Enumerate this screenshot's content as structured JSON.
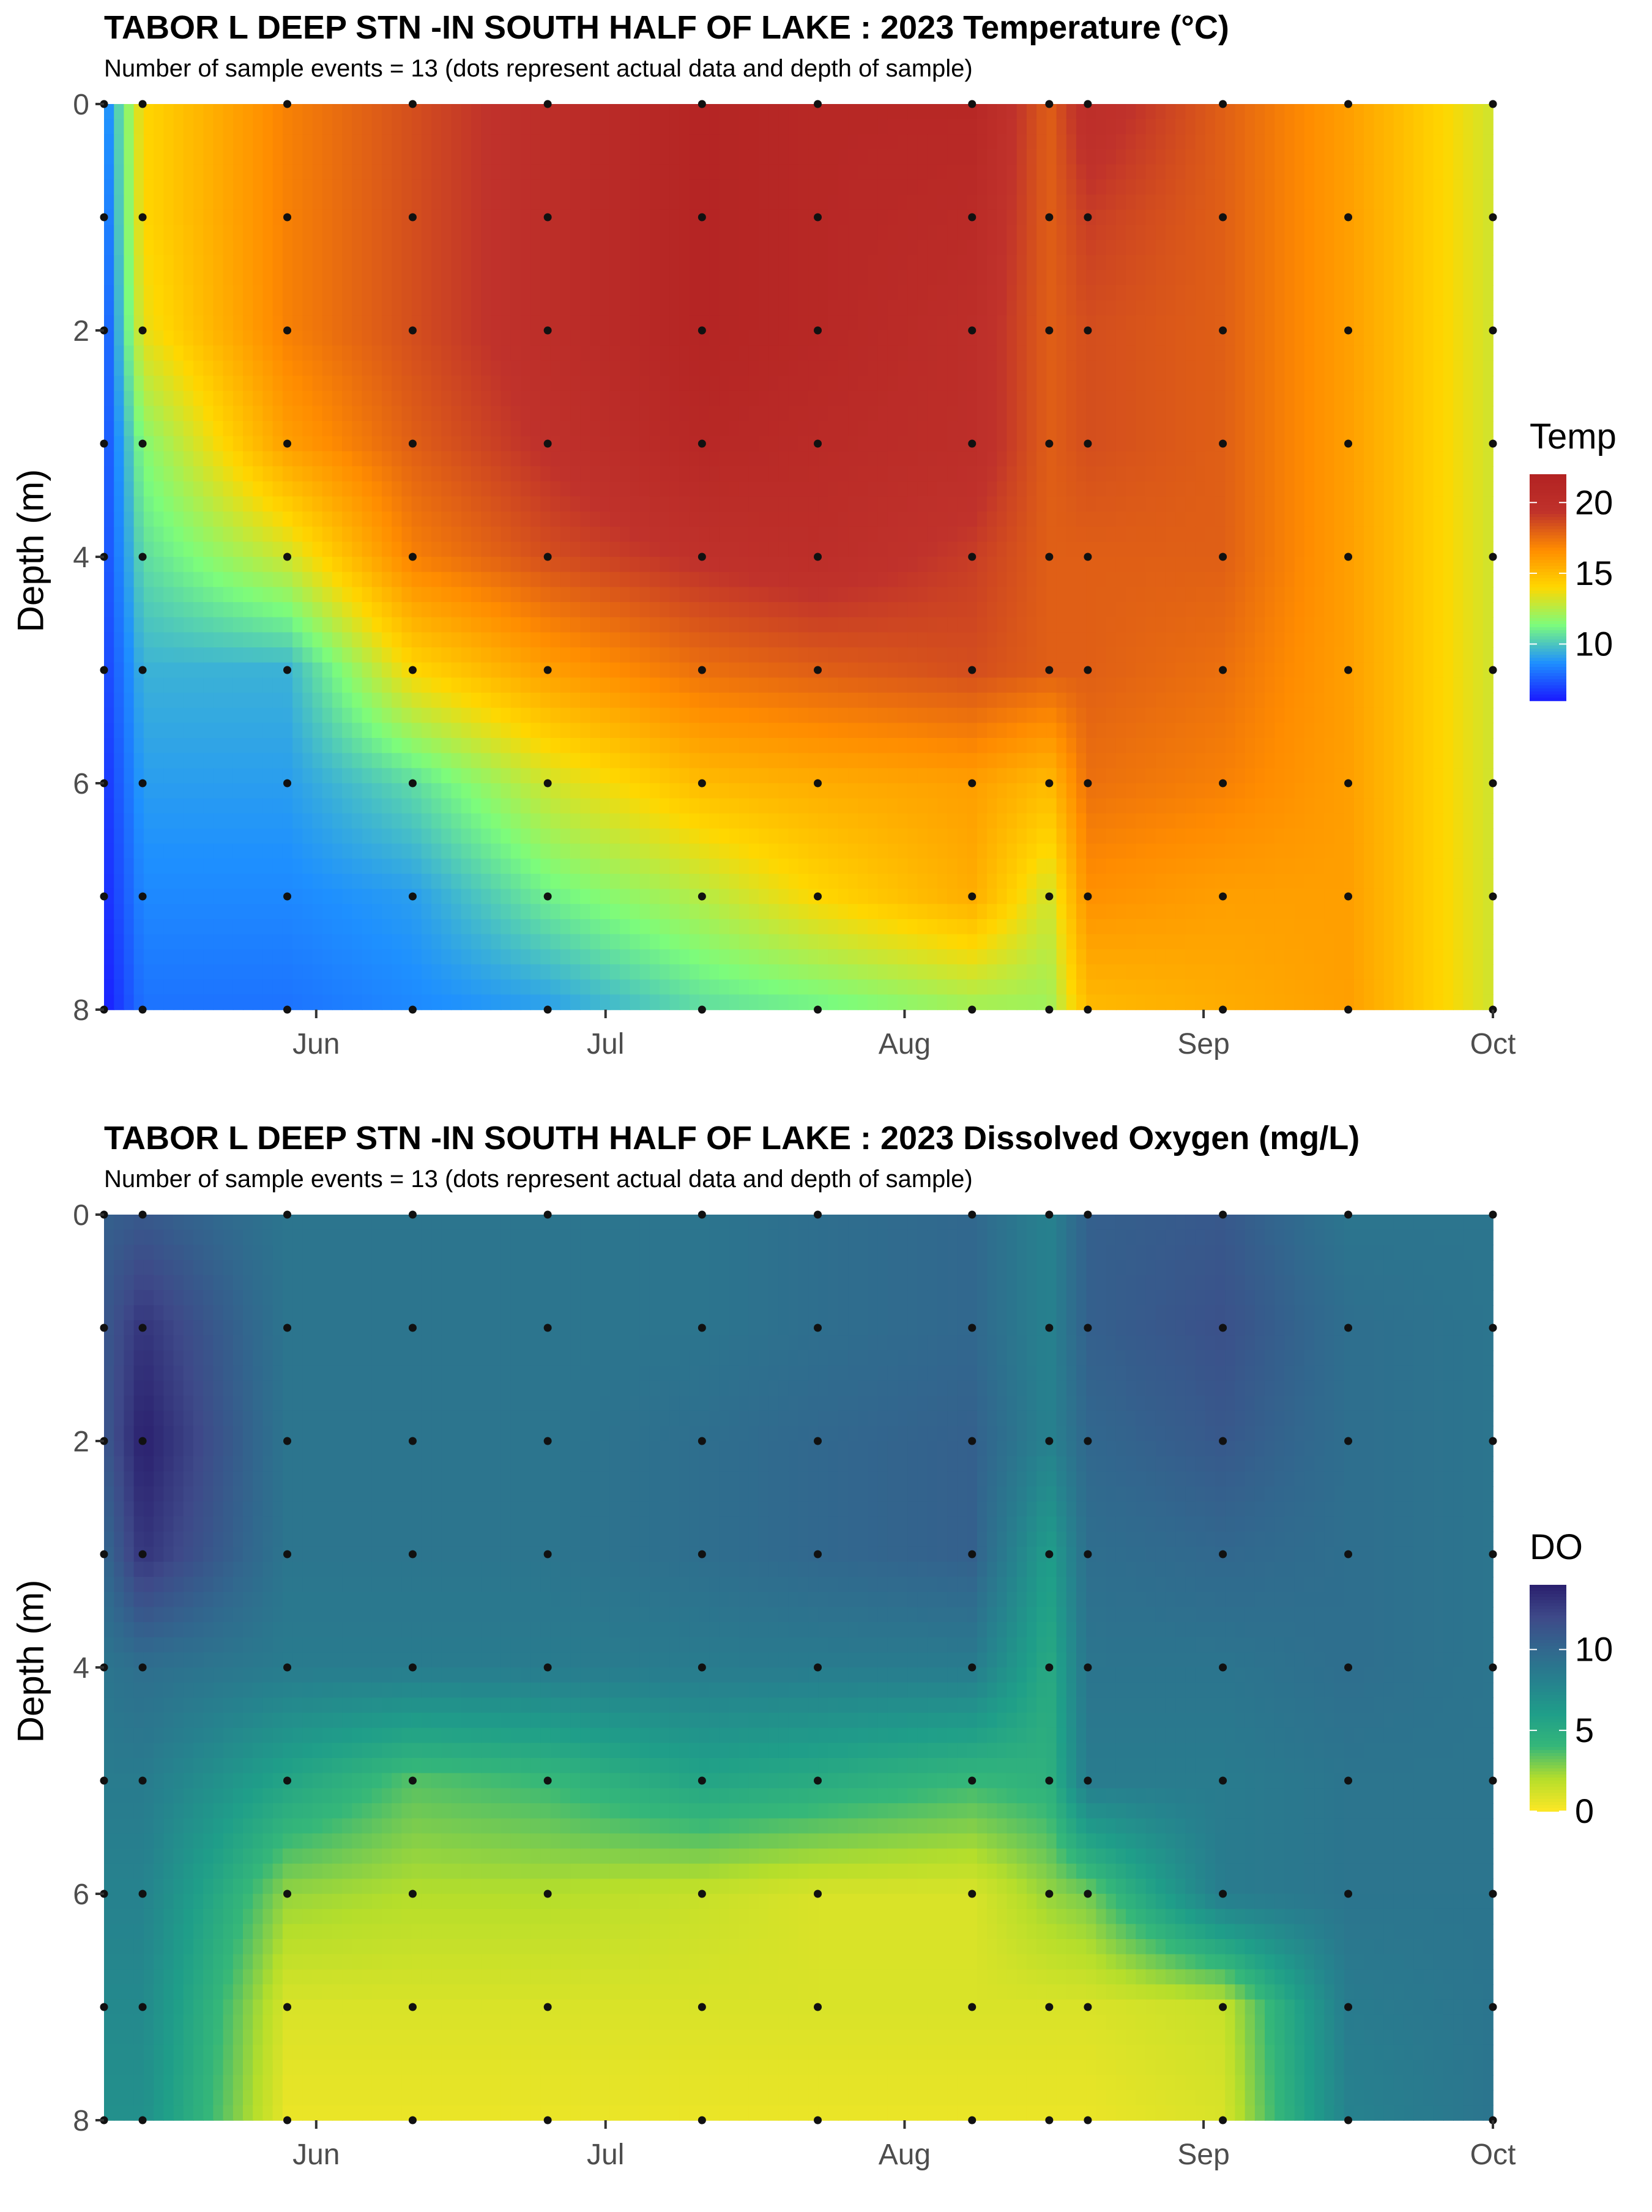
{
  "chart_data": [
    {
      "type": "heatmap",
      "title": "TABOR L DEEP STN -IN SOUTH HALF OF LAKE :  2023 Temperature (°C)",
      "subtitle": "Number of sample events = 13 (dots represent actual data and depth of sample)",
      "xlabel": "",
      "ylabel": "Depth (m)",
      "legend_title": "Temp",
      "legend_ticks": [
        10,
        15,
        20
      ],
      "color_range": [
        6,
        22
      ],
      "color_scale": [
        "#1a1aff",
        "#1e90ff",
        "#7cfc7c",
        "#ffd700",
        "#ff8c00",
        "#c0322b",
        "#b22222"
      ],
      "ylim": [
        0,
        8
      ],
      "y_ticks": [
        0,
        2,
        4,
        6,
        8
      ],
      "y_reversed": true,
      "x_range": [
        "2023-05-10",
        "2023-10-01"
      ],
      "x_ticks": [
        {
          "date": "2023-06-01",
          "label": "Jun"
        },
        {
          "date": "2023-07-01",
          "label": "Jul"
        },
        {
          "date": "2023-08-01",
          "label": "Aug"
        },
        {
          "date": "2023-09-01",
          "label": "Sep"
        },
        {
          "date": "2023-10-01",
          "label": "Oct"
        }
      ],
      "sample_dates": [
        "2023-05-10",
        "2023-05-14",
        "2023-05-29",
        "2023-06-11",
        "2023-06-25",
        "2023-07-11",
        "2023-07-23",
        "2023-08-08",
        "2023-08-16",
        "2023-08-20",
        "2023-09-03",
        "2023-09-16",
        "2023-10-01"
      ],
      "depths": [
        0,
        1,
        2,
        3,
        4,
        5,
        6,
        7,
        8
      ],
      "values": [
        [
          8,
          14,
          17,
          18.5,
          20,
          21.5,
          21,
          21,
          18,
          20,
          18,
          16,
          13
        ],
        [
          7.5,
          14,
          17,
          18.5,
          20,
          21.5,
          21,
          20.5,
          18,
          19,
          18,
          16,
          13
        ],
        [
          7,
          13.5,
          17,
          18.5,
          20,
          21.5,
          21,
          20,
          18,
          18.5,
          18,
          16,
          13
        ],
        [
          7,
          11.5,
          16,
          18,
          19.5,
          21,
          20.5,
          20,
          18,
          18.5,
          18,
          16,
          13
        ],
        [
          7,
          10.5,
          13,
          17,
          18.5,
          19.5,
          20,
          19,
          18,
          18,
          18,
          16,
          13
        ],
        [
          6.8,
          9.5,
          9.5,
          14,
          16,
          17.5,
          18,
          18.5,
          18,
          18,
          17.5,
          16,
          13
        ],
        [
          6.5,
          9,
          9,
          10.5,
          13,
          15,
          15.5,
          16,
          15,
          17.5,
          17,
          16,
          13
        ],
        [
          6.3,
          8.5,
          8.5,
          9,
          11,
          12.5,
          14,
          15.5,
          13,
          16.5,
          16,
          16,
          13
        ],
        [
          6,
          8,
          8,
          8.5,
          9,
          10.5,
          11,
          12,
          12,
          15,
          15.5,
          16,
          13
        ]
      ]
    },
    {
      "type": "heatmap",
      "title": "TABOR L DEEP STN -IN SOUTH HALF OF LAKE :  2023 Dissolved Oxygen (mg/L)",
      "subtitle": "Number of sample events = 13 (dots represent actual data and depth of sample)",
      "xlabel": "",
      "ylabel": "Depth (m)",
      "legend_title": "DO",
      "legend_ticks": [
        0,
        5,
        10
      ],
      "color_range": [
        0,
        14
      ],
      "color_scale": [
        "#fde725",
        "#b5de2b",
        "#35b779",
        "#1f9e89",
        "#26828e",
        "#31688e",
        "#3e4989",
        "#2a1f6e"
      ],
      "ylim": [
        0,
        8
      ],
      "y_ticks": [
        0,
        2,
        4,
        6,
        8
      ],
      "y_reversed": true,
      "x_range": [
        "2023-05-10",
        "2023-10-01"
      ],
      "x_ticks": [
        {
          "date": "2023-06-01",
          "label": "Jun"
        },
        {
          "date": "2023-07-01",
          "label": "Jul"
        },
        {
          "date": "2023-08-01",
          "label": "Aug"
        },
        {
          "date": "2023-09-01",
          "label": "Sep"
        },
        {
          "date": "2023-10-01",
          "label": "Oct"
        }
      ],
      "sample_dates": [
        "2023-05-10",
        "2023-05-14",
        "2023-05-29",
        "2023-06-11",
        "2023-06-25",
        "2023-07-11",
        "2023-07-23",
        "2023-08-08",
        "2023-08-16",
        "2023-08-20",
        "2023-09-03",
        "2023-09-16",
        "2023-10-01"
      ],
      "depths": [
        0,
        1,
        2,
        3,
        4,
        5,
        6,
        7,
        8
      ],
      "values": [
        [
          10.5,
          11,
          9,
          9,
          9,
          9,
          9.5,
          10,
          8,
          10.5,
          11,
          9,
          9
        ],
        [
          11,
          13,
          9,
          9,
          9,
          9,
          9.5,
          10,
          8,
          10.5,
          11.5,
          9.5,
          9
        ],
        [
          11,
          14,
          9,
          9,
          9,
          9.5,
          10,
          10.5,
          8,
          10,
          11,
          9.5,
          9
        ],
        [
          10,
          13,
          9,
          9,
          9,
          9.5,
          10,
          10.5,
          6,
          9.5,
          10,
          9.5,
          9
        ],
        [
          9,
          9.5,
          8.5,
          8.5,
          8.5,
          8.5,
          8.5,
          8.5,
          5,
          9,
          9,
          9.5,
          9
        ],
        [
          8.5,
          8.5,
          5.5,
          3.5,
          4,
          5.5,
          5,
          4,
          4.5,
          8.5,
          8.5,
          9,
          9
        ],
        [
          8,
          8,
          2.5,
          2,
          2,
          1.5,
          1,
          1,
          2.5,
          3,
          8.5,
          9,
          9
        ],
        [
          7.5,
          7.5,
          1,
          1,
          1,
          1,
          1,
          1,
          1,
          1,
          1.5,
          8.5,
          9
        ],
        [
          7,
          7,
          0.5,
          0.5,
          0.5,
          0.5,
          0.5,
          0.5,
          0.5,
          0.5,
          1,
          8,
          9
        ]
      ]
    }
  ]
}
